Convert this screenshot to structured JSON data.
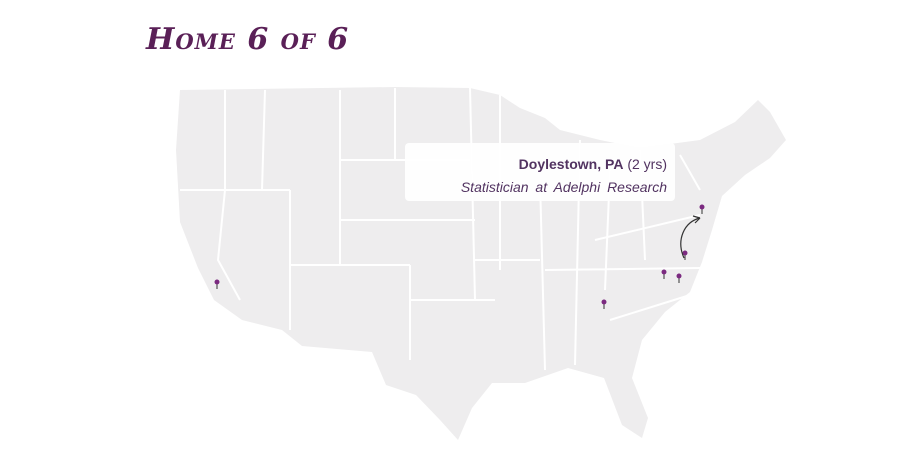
{
  "title": "Home 6 of 6",
  "tooltip": {
    "city": "Doylestown,  PA",
    "duration": "(2 yrs)",
    "job": "Statistician at Adelphi Research"
  },
  "colors": {
    "accent": "#5a2057",
    "pin": "#7b2a80",
    "land": "#eeedee",
    "borders": "#ffffff"
  },
  "pins": [
    {
      "name": "california"
    },
    {
      "name": "georgia"
    },
    {
      "name": "north-carolina-west"
    },
    {
      "name": "north-carolina-east"
    },
    {
      "name": "maryland"
    },
    {
      "name": "doylestown-pa"
    }
  ]
}
